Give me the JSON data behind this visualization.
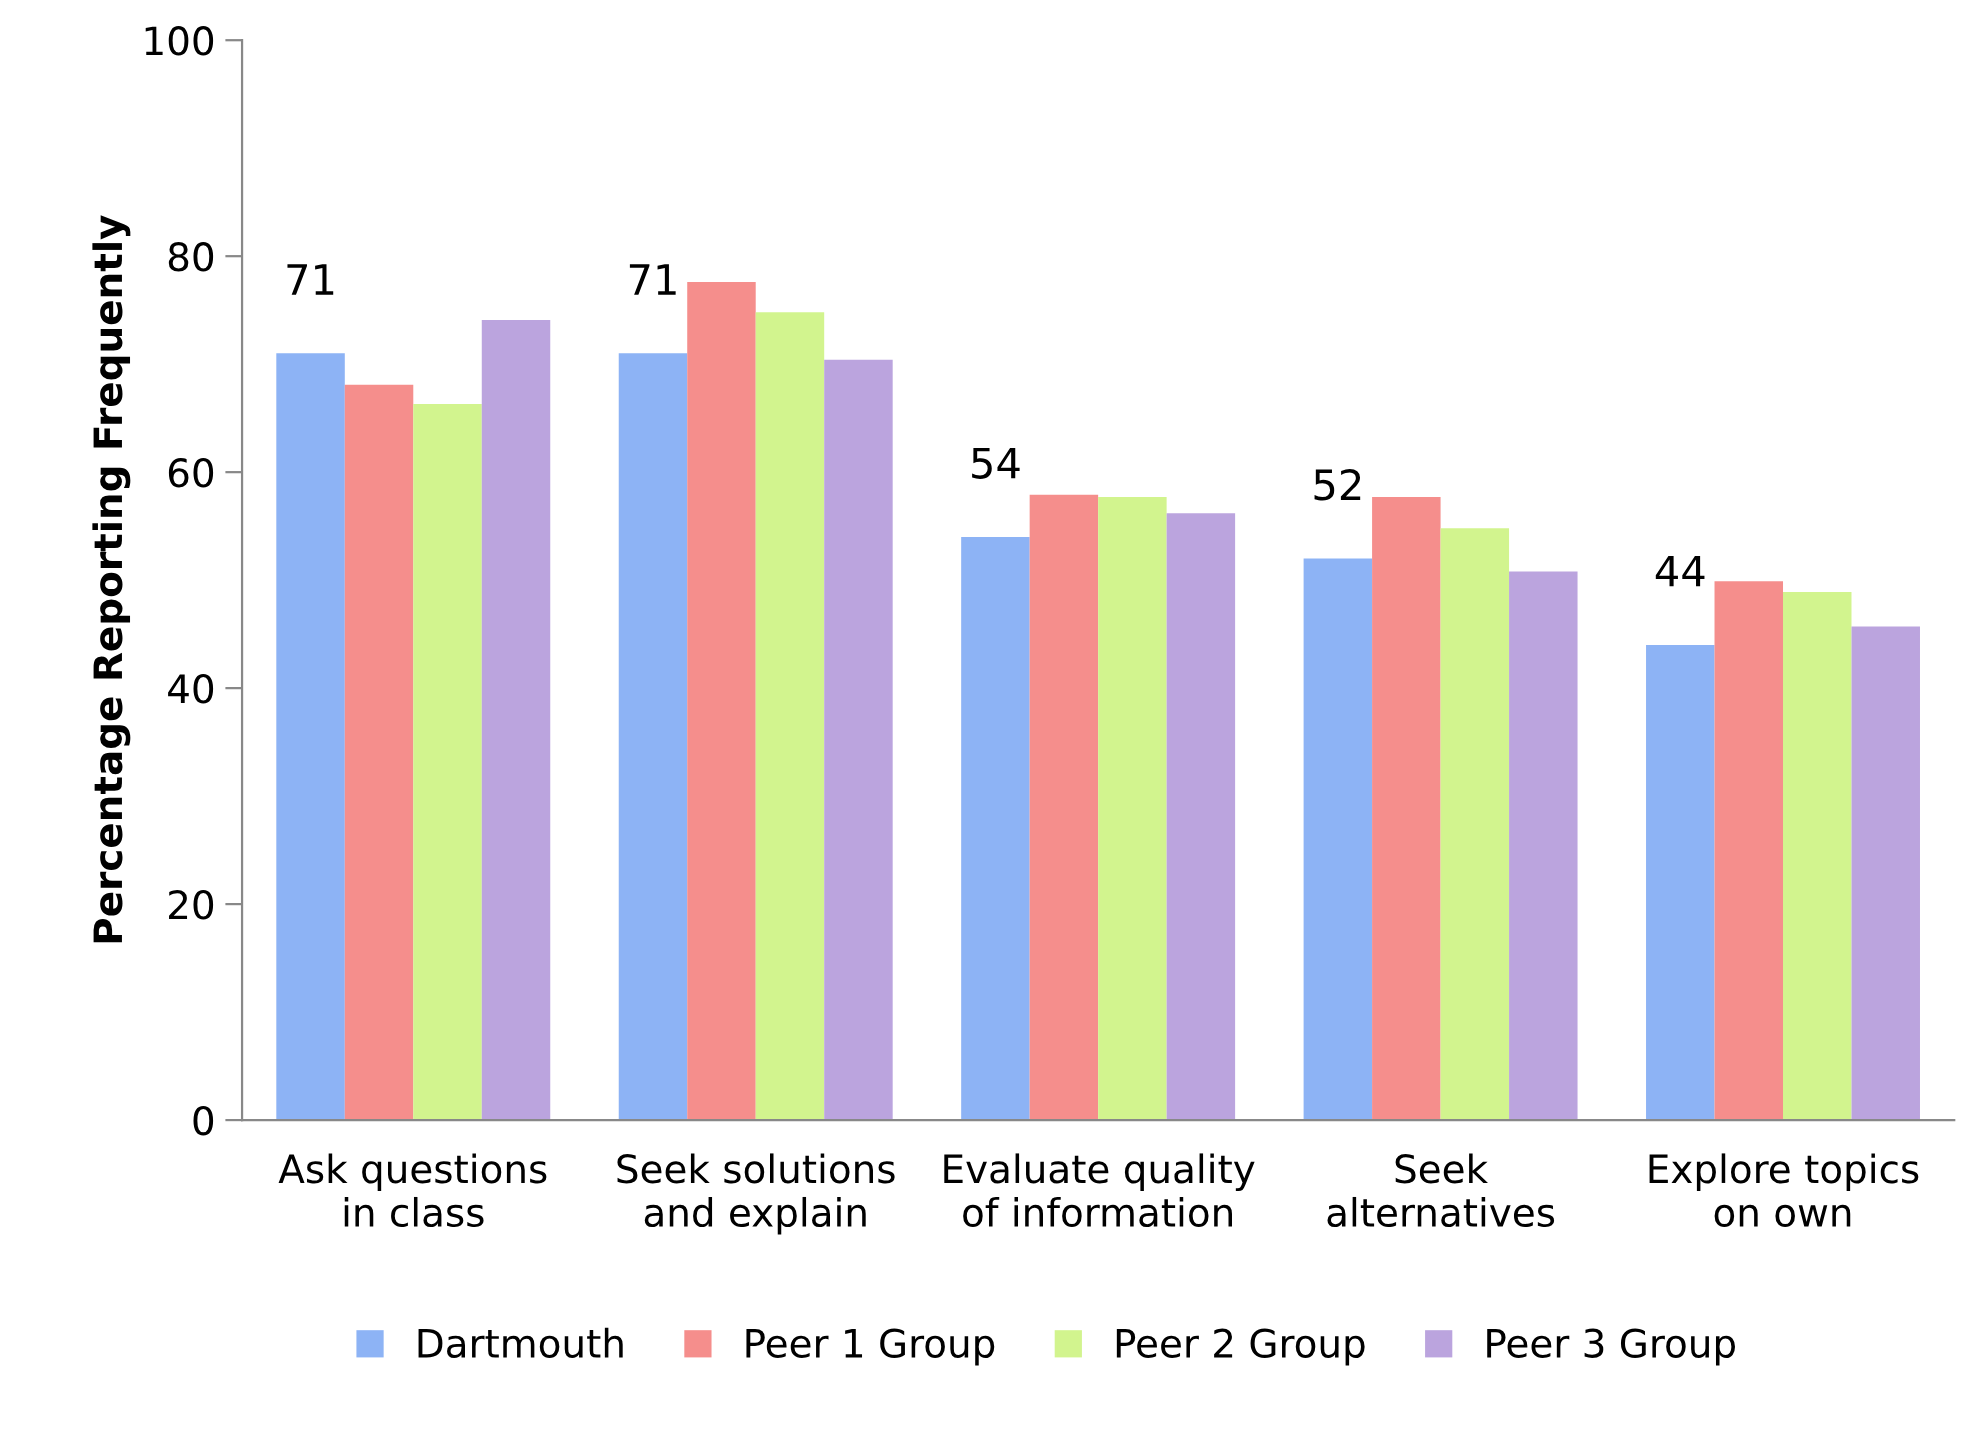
{
  "chart_data": {
    "type": "bar",
    "ylabel": "Percentage Reporting Frequently",
    "categories": [
      "Ask questions\nin class",
      "Seek solutions\nand explain",
      "Evaluate quality\nof information",
      "Seek\nalternatives",
      "Explore topics\non own"
    ],
    "series": [
      {
        "name": "Dartmouth",
        "color": "#8db3f5",
        "values": [
          71,
          71,
          54,
          52,
          44
        ],
        "value_labels": [
          "71",
          "71",
          "54",
          "52",
          "44"
        ]
      },
      {
        "name": "Peer 1 Group",
        "color": "#f58e8c",
        "values": [
          68.1,
          77.6,
          57.9,
          57.7,
          49.9
        ]
      },
      {
        "name": "Peer 2 Group",
        "color": "#d2f48e",
        "values": [
          66.3,
          74.8,
          57.7,
          54.8,
          48.9
        ]
      },
      {
        "name": "Peer 3 Group",
        "color": "#bba4de",
        "values": [
          74.1,
          70.4,
          56.2,
          50.8,
          45.7
        ]
      }
    ],
    "ylim": [
      0,
      100
    ],
    "yticks": [
      0,
      20,
      40,
      60,
      80,
      100
    ],
    "grid": false,
    "legend": "bottom"
  }
}
